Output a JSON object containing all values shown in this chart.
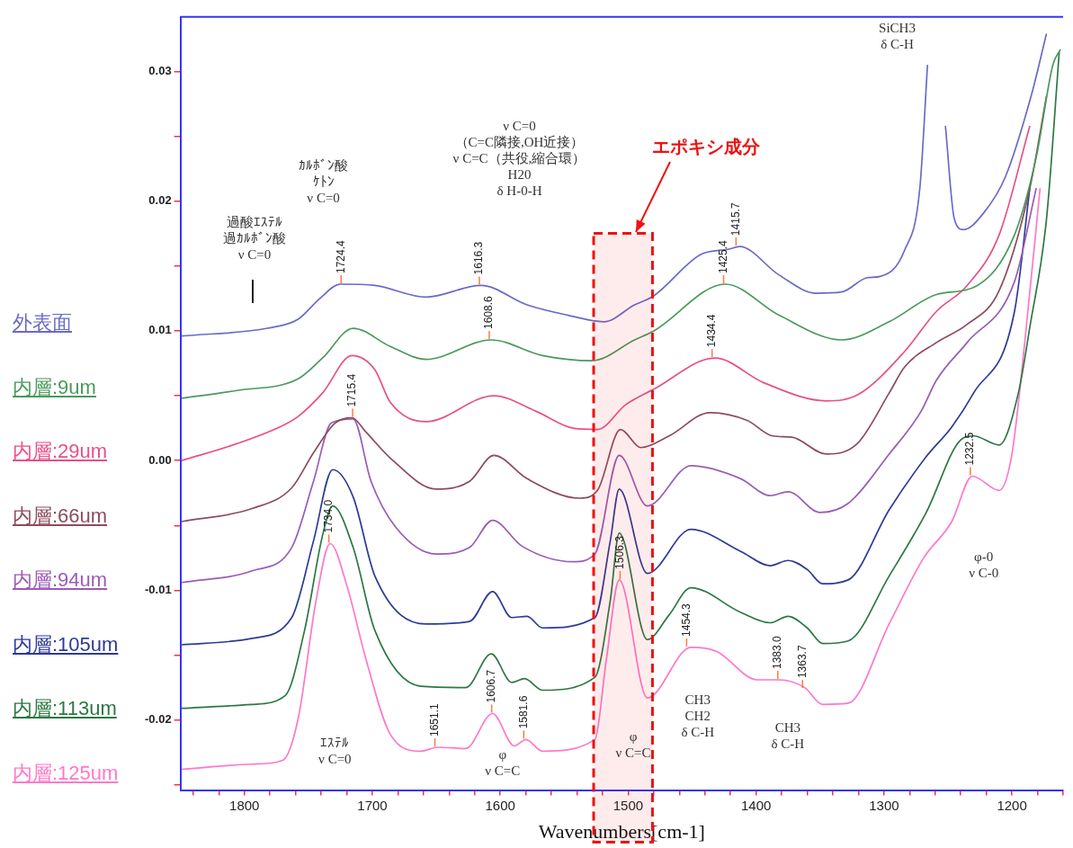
{
  "chart_data": {
    "type": "line",
    "xlabel": "Wavenumbers[cm-1]",
    "xlim": [
      1850,
      1160
    ],
    "ylim": [
      -0.0254,
      0.0342
    ],
    "xticks": [
      {
        "value": 1840,
        "label": null
      },
      {
        "value": 1820,
        "label": null
      },
      1800,
      {
        "value": 1780,
        "label": null
      },
      {
        "value": 1760,
        "label": null
      },
      {
        "value": 1740,
        "label": null
      },
      {
        "value": 1720,
        "label": null
      },
      1700,
      {
        "value": 1680,
        "label": null
      },
      {
        "value": 1660,
        "label": null
      },
      {
        "value": 1640,
        "label": null
      },
      {
        "value": 1620,
        "label": null
      },
      1600,
      {
        "value": 1580,
        "label": null
      },
      {
        "value": 1560,
        "label": null
      },
      {
        "value": 1540,
        "label": null
      },
      {
        "value": 1520,
        "label": null
      },
      1500,
      {
        "value": 1480,
        "label": null
      },
      {
        "value": 1460,
        "label": null
      },
      {
        "value": 1440,
        "label": null
      },
      {
        "value": 1420,
        "label": null
      },
      1400,
      {
        "value": 1380,
        "label": null
      },
      {
        "value": 1360,
        "label": null
      },
      {
        "value": 1340,
        "label": null
      },
      {
        "value": 1320,
        "label": null
      },
      1300,
      {
        "value": 1280,
        "label": null
      },
      {
        "value": 1260,
        "label": null
      },
      {
        "value": 1240,
        "label": null
      },
      {
        "value": 1220,
        "label": null
      },
      1200,
      {
        "value": 1180,
        "label": null
      },
      {
        "value": 1160,
        "label": null
      }
    ],
    "yticks": [
      {
        "value": -0.025,
        "label": null
      },
      -0.02,
      {
        "value": -0.015,
        "label": null
      },
      -0.01,
      {
        "value": -0.005,
        "label": null
      },
      {
        "value": 0,
        "label": "0.00"
      },
      {
        "value": 0.005,
        "label": null
      },
      0.01,
      {
        "value": 0.015,
        "label": null
      },
      0.02,
      {
        "value": 0.025,
        "label": null
      },
      0.03
    ],
    "legend": "left",
    "series": [
      {
        "name": "外表面",
        "color": "#6a6ac8",
        "x": [
          1849,
          1782,
          1758,
          1741,
          1725,
          1698,
          1658,
          1615,
          1579,
          1547,
          1519,
          1495,
          1480,
          1443,
          1421,
          1413,
          1382,
          1353,
          1333,
          1313,
          1303,
          1284,
          1272,
          1266,
          1263,
          1259.5,
          1256,
          1252,
          1245,
          1238,
          1222,
          1205,
          1185,
          1173
        ],
        "values": [
          0.0096,
          0.0102,
          0.0109,
          0.0125,
          0.0136,
          0.0135,
          0.0126,
          0.0135,
          0.012,
          0.0112,
          0.0107,
          0.012,
          0.0127,
          0.0159,
          0.0163,
          0.0165,
          0.0143,
          0.0129,
          0.013,
          0.0141,
          0.0142,
          0.0162,
          0.021,
          0.0305,
          null,
          null,
          null,
          0.0258,
          0.0186,
          0.0178,
          0.0191,
          0.0219,
          0.0281,
          0.0329
        ]
      },
      {
        "name": "内層:9um",
        "color": "#4a9a5c",
        "x": [
          1849,
          1806,
          1758,
          1739,
          1715,
          1686,
          1658,
          1607,
          1567,
          1528,
          1495,
          1480,
          1424,
          1382,
          1333,
          1296,
          1259,
          1227,
          1198,
          1181,
          1168,
          1162
        ],
        "values": [
          0.0048,
          0.0054,
          0.0063,
          0.0079,
          0.0102,
          0.0088,
          0.0078,
          0.0093,
          0.0081,
          0.0077,
          0.0093,
          0.01,
          0.0136,
          0.0112,
          0.0093,
          0.0107,
          0.0128,
          0.0135,
          0.0174,
          0.0234,
          0.0305,
          0.0317
        ]
      },
      {
        "name": "内層:29um",
        "color": "#e8508a",
        "x": [
          1849,
          1806,
          1770,
          1758,
          1739,
          1716,
          1698,
          1686,
          1658,
          1605,
          1572,
          1543,
          1524,
          1502,
          1480,
          1432,
          1394,
          1345,
          1320,
          1284,
          1259,
          1235,
          1210,
          1186
        ],
        "values": [
          0.0,
          0.0013,
          0.0027,
          0.0034,
          0.0052,
          0.0081,
          0.007,
          0.0045,
          0.003,
          0.005,
          0.0038,
          0.0025,
          0.0024,
          0.0043,
          0.0055,
          0.0079,
          0.006,
          0.0046,
          0.0051,
          0.0084,
          0.0115,
          0.0135,
          0.0174,
          0.0258
        ]
      },
      {
        "name": "内層:66um",
        "color": "#8c4c5c",
        "x": [
          1849,
          1794,
          1763,
          1746,
          1729,
          1716,
          1705,
          1686,
          1650,
          1624,
          1605,
          1579,
          1538,
          1524,
          1506,
          1490,
          1468,
          1436,
          1407,
          1387,
          1372,
          1345,
          1321,
          1296,
          1284,
          1259,
          1235,
          1210,
          1186,
          1173
        ],
        "values": [
          -0.0047,
          -0.0037,
          -0.0021,
          0.0006,
          0.0029,
          0.0033,
          0.0022,
          0.0002,
          -0.0022,
          -0.0016,
          0.0004,
          -0.0014,
          -0.0029,
          -0.0023,
          0.0024,
          0.001,
          0.0019,
          0.0037,
          0.0031,
          0.0019,
          0.0018,
          0.0005,
          0.0013,
          0.0052,
          0.0072,
          0.0091,
          0.0105,
          0.0131,
          0.021,
          0.0281
        ]
      },
      {
        "name": "内層:94um",
        "color": "#9a5cb4",
        "x": [
          1849,
          1794,
          1763,
          1746,
          1732,
          1715,
          1701,
          1682,
          1650,
          1624,
          1606,
          1583,
          1543,
          1526,
          1507,
          1485,
          1451,
          1412,
          1389,
          1375,
          1350,
          1328,
          1296,
          1271,
          1259,
          1235,
          1198,
          1181
        ],
        "values": [
          -0.0094,
          -0.0085,
          -0.0067,
          -0.0016,
          0.0029,
          0.0032,
          -0.0016,
          -0.0051,
          -0.0072,
          -0.0067,
          -0.0046,
          -0.0066,
          -0.0078,
          -0.0072,
          0.0004,
          -0.0035,
          -0.0004,
          -0.0014,
          -0.0027,
          -0.0024,
          -0.004,
          -0.0033,
          0.0005,
          0.0038,
          0.0062,
          0.0091,
          0.0138,
          0.021
        ]
      },
      {
        "name": "内層:105um",
        "color": "#2e3a98",
        "x": [
          1849,
          1794,
          1763,
          1746,
          1731,
          1715,
          1698,
          1658,
          1624,
          1606,
          1591,
          1579,
          1567,
          1526,
          1514,
          1507,
          1485,
          1451,
          1412,
          1389,
          1375,
          1360,
          1348,
          1328,
          1296,
          1267,
          1247,
          1230,
          1198,
          1186
        ],
        "values": [
          -0.0142,
          -0.0137,
          -0.0121,
          -0.0062,
          -0.0007,
          -0.0028,
          -0.0089,
          -0.0126,
          -0.0124,
          -0.0101,
          -0.0121,
          -0.012,
          -0.0129,
          -0.0121,
          -0.0062,
          -0.0022,
          -0.0087,
          -0.0053,
          -0.007,
          -0.0081,
          -0.0077,
          -0.0084,
          -0.0095,
          -0.0092,
          -0.0038,
          0.0003,
          0.0026,
          0.0052,
          0.0115,
          0.021
        ]
      },
      {
        "name": "内層:113um",
        "color": "#2c7844",
        "x": [
          1849,
          1794,
          1768,
          1753,
          1739,
          1731,
          1715,
          1698,
          1662,
          1627,
          1607,
          1591,
          1581,
          1567,
          1526,
          1514,
          1507,
          1485,
          1468,
          1451,
          1412,
          1389,
          1375,
          1360,
          1348,
          1328,
          1296,
          1267,
          1240,
          1230,
          1210,
          1195,
          1186,
          1173,
          1163
        ],
        "values": [
          -0.0191,
          -0.0188,
          -0.0181,
          -0.0131,
          -0.0058,
          -0.0035,
          -0.0067,
          -0.0131,
          -0.0174,
          -0.0175,
          -0.0149,
          -0.0171,
          -0.0168,
          -0.0177,
          -0.0167,
          -0.0108,
          -0.0056,
          -0.0138,
          -0.0119,
          -0.0098,
          -0.0117,
          -0.0125,
          -0.012,
          -0.0129,
          -0.0141,
          -0.0139,
          -0.0089,
          -0.004,
          0.0016,
          0.0019,
          0.0012,
          0.0052,
          0.0103,
          0.0186,
          0.0315
        ]
      },
      {
        "name": "内層:125um",
        "color": "#ff78c8",
        "x": [
          1849,
          1794,
          1770,
          1758,
          1744,
          1733,
          1720,
          1705,
          1686,
          1662,
          1649,
          1627,
          1606,
          1589,
          1580,
          1567,
          1526,
          1517,
          1507,
          1485,
          1451,
          1431,
          1399,
          1382,
          1362,
          1348,
          1328,
          1296,
          1269,
          1247,
          1231,
          1210,
          1200,
          1190,
          1178
        ],
        "values": [
          -0.0238,
          -0.0234,
          -0.0231,
          -0.0199,
          -0.0108,
          -0.0064,
          -0.0096,
          -0.0153,
          -0.0211,
          -0.0224,
          -0.0221,
          -0.0222,
          -0.0195,
          -0.022,
          -0.0215,
          -0.0224,
          -0.0215,
          -0.0153,
          -0.0092,
          -0.0183,
          -0.0144,
          -0.0147,
          -0.0169,
          -0.0169,
          -0.0175,
          -0.0188,
          -0.0187,
          -0.0126,
          -0.0075,
          -0.0047,
          -0.0012,
          -0.0023,
          0.0005,
          0.0091,
          0.021
        ]
      }
    ],
    "bands": [
      {
        "axis": "x",
        "from": 1527,
        "to": 1481,
        "label": "エポキシ成分",
        "color": "#ee1111"
      }
    ],
    "annotations": [
      "過酸ｴｽﾃﾙ",
      "過ｶﾙﾎﾞﾝ酸",
      "ν C=0",
      "ｶﾙﾎﾞﾝ酸",
      "ｹﾄﾝ",
      "ν C=0",
      "ν C=0",
      "（C=C隣接,OH近接）",
      "ν C=C（共役,縮合環）",
      "H20",
      "δ H-0-H",
      "SiCH3",
      "δ C-H",
      "ｴｽﾃﾙ",
      "ν C=0",
      "φ",
      "ν C=C",
      "φ",
      "ν C=C",
      "CH3",
      "CH2",
      "δ C-H",
      "CH3",
      "δ C-H",
      "φ-0",
      "ν C-0",
      {
        "text": "1724.4",
        "x": 1724.4,
        "y": 0.0136
      },
      {
        "text": "1616.3",
        "x": 1616.3,
        "y": 0.0135
      },
      {
        "text": "1608.6",
        "x": 1608.6,
        "y": 0.0093
      },
      {
        "text": "1715.4",
        "x": 1715.4,
        "y": 0.0033
      },
      {
        "text": "1425.4",
        "x": 1425.4,
        "y": 0.0136
      },
      {
        "text": "1415.7",
        "x": 1415.7,
        "y": 0.0165
      },
      {
        "text": "1434.4",
        "x": 1434.4,
        "y": 0.0079
      },
      {
        "text": "1734.0",
        "x": 1734.0,
        "y": -0.0064
      },
      {
        "text": "1506.3",
        "x": 1506.3,
        "y": -0.0092
      },
      {
        "text": "1651.1",
        "x": 1651.1,
        "y": -0.0221
      },
      {
        "text": "1606.7",
        "x": 1606.7,
        "y": -0.0195
      },
      {
        "text": "1581.6",
        "x": 1581.6,
        "y": -0.0215
      },
      {
        "text": "1454.3",
        "x": 1454.3,
        "y": -0.0144
      },
      {
        "text": "1383.0",
        "x": 1383.0,
        "y": -0.0169
      },
      {
        "text": "1363.7",
        "x": 1363.7,
        "y": -0.0176
      },
      {
        "text": "1232.5",
        "x": 1232.5,
        "y": -0.0012
      }
    ]
  }
}
